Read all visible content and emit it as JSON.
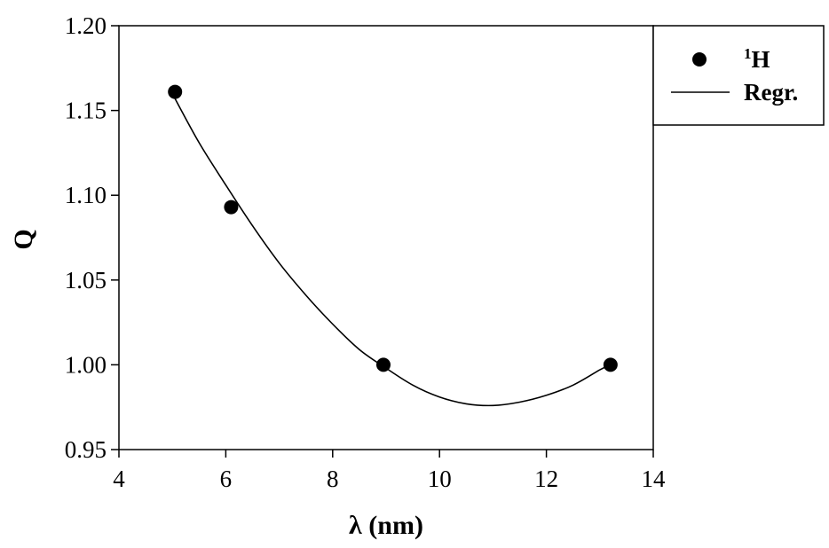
{
  "chart_data": {
    "type": "scatter",
    "title": "",
    "xlabel": "λ (nm)",
    "ylabel": "Q",
    "xlim": [
      4,
      14
    ],
    "ylim": [
      0.95,
      1.2
    ],
    "xticks": [
      4,
      6,
      8,
      10,
      12,
      14
    ],
    "yticks": [
      0.95,
      1.0,
      1.05,
      1.1,
      1.15,
      1.2
    ],
    "xtick_labels": [
      "4",
      "6",
      "8",
      "10",
      "12",
      "14"
    ],
    "ytick_labels": [
      "0.95",
      "1.00",
      "1.05",
      "1.10",
      "1.15",
      "1.20"
    ],
    "grid": false,
    "legend_position": "top-right, outside plot",
    "series": [
      {
        "name": "1H",
        "name_superscript": "1",
        "name_main": "H",
        "kind": "points",
        "x": [
          5.05,
          6.1,
          8.95,
          13.2
        ],
        "y": [
          1.161,
          1.093,
          1.0,
          1.0
        ]
      },
      {
        "name": "Regr.",
        "kind": "line",
        "x": [
          5.05,
          5.5,
          6.0,
          6.5,
          7.0,
          7.5,
          8.0,
          8.5,
          9.0,
          9.5,
          10.0,
          10.5,
          11.0,
          11.5,
          12.0,
          12.5,
          13.0,
          13.2
        ],
        "y": [
          1.157,
          1.131,
          1.106,
          1.082,
          1.06,
          1.041,
          1.024,
          1.009,
          0.998,
          0.988,
          0.981,
          0.977,
          0.976,
          0.978,
          0.982,
          0.988,
          0.997,
          1.0
        ]
      }
    ]
  }
}
